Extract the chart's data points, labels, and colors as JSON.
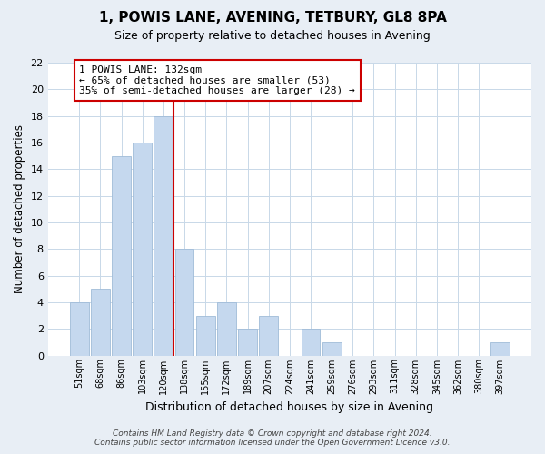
{
  "title": "1, POWIS LANE, AVENING, TETBURY, GL8 8PA",
  "subtitle": "Size of property relative to detached houses in Avening",
  "xlabel": "Distribution of detached houses by size in Avening",
  "ylabel": "Number of detached properties",
  "bar_labels": [
    "51sqm",
    "68sqm",
    "86sqm",
    "103sqm",
    "120sqm",
    "138sqm",
    "155sqm",
    "172sqm",
    "189sqm",
    "207sqm",
    "224sqm",
    "241sqm",
    "259sqm",
    "276sqm",
    "293sqm",
    "311sqm",
    "328sqm",
    "345sqm",
    "362sqm",
    "380sqm",
    "397sqm"
  ],
  "bar_values": [
    4,
    5,
    15,
    16,
    18,
    8,
    3,
    4,
    2,
    3,
    0,
    2,
    1,
    0,
    0,
    0,
    0,
    0,
    0,
    0,
    1
  ],
  "bar_color": "#c5d8ee",
  "bar_edge_color": "#a0bcd8",
  "vline_color": "#cc0000",
  "annotation_line1": "1 POWIS LANE: 132sqm",
  "annotation_line2": "← 65% of detached houses are smaller (53)",
  "annotation_line3": "35% of semi-detached houses are larger (28) →",
  "annotation_box_facecolor": "#ffffff",
  "annotation_box_edgecolor": "#cc0000",
  "ylim": [
    0,
    22
  ],
  "yticks": [
    0,
    2,
    4,
    6,
    8,
    10,
    12,
    14,
    16,
    18,
    20,
    22
  ],
  "footer_line1": "Contains HM Land Registry data © Crown copyright and database right 2024.",
  "footer_line2": "Contains public sector information licensed under the Open Government Licence v3.0.",
  "grid_color": "#c8d8e8",
  "bg_color": "#ffffff",
  "fig_bg_color": "#e8eef5"
}
